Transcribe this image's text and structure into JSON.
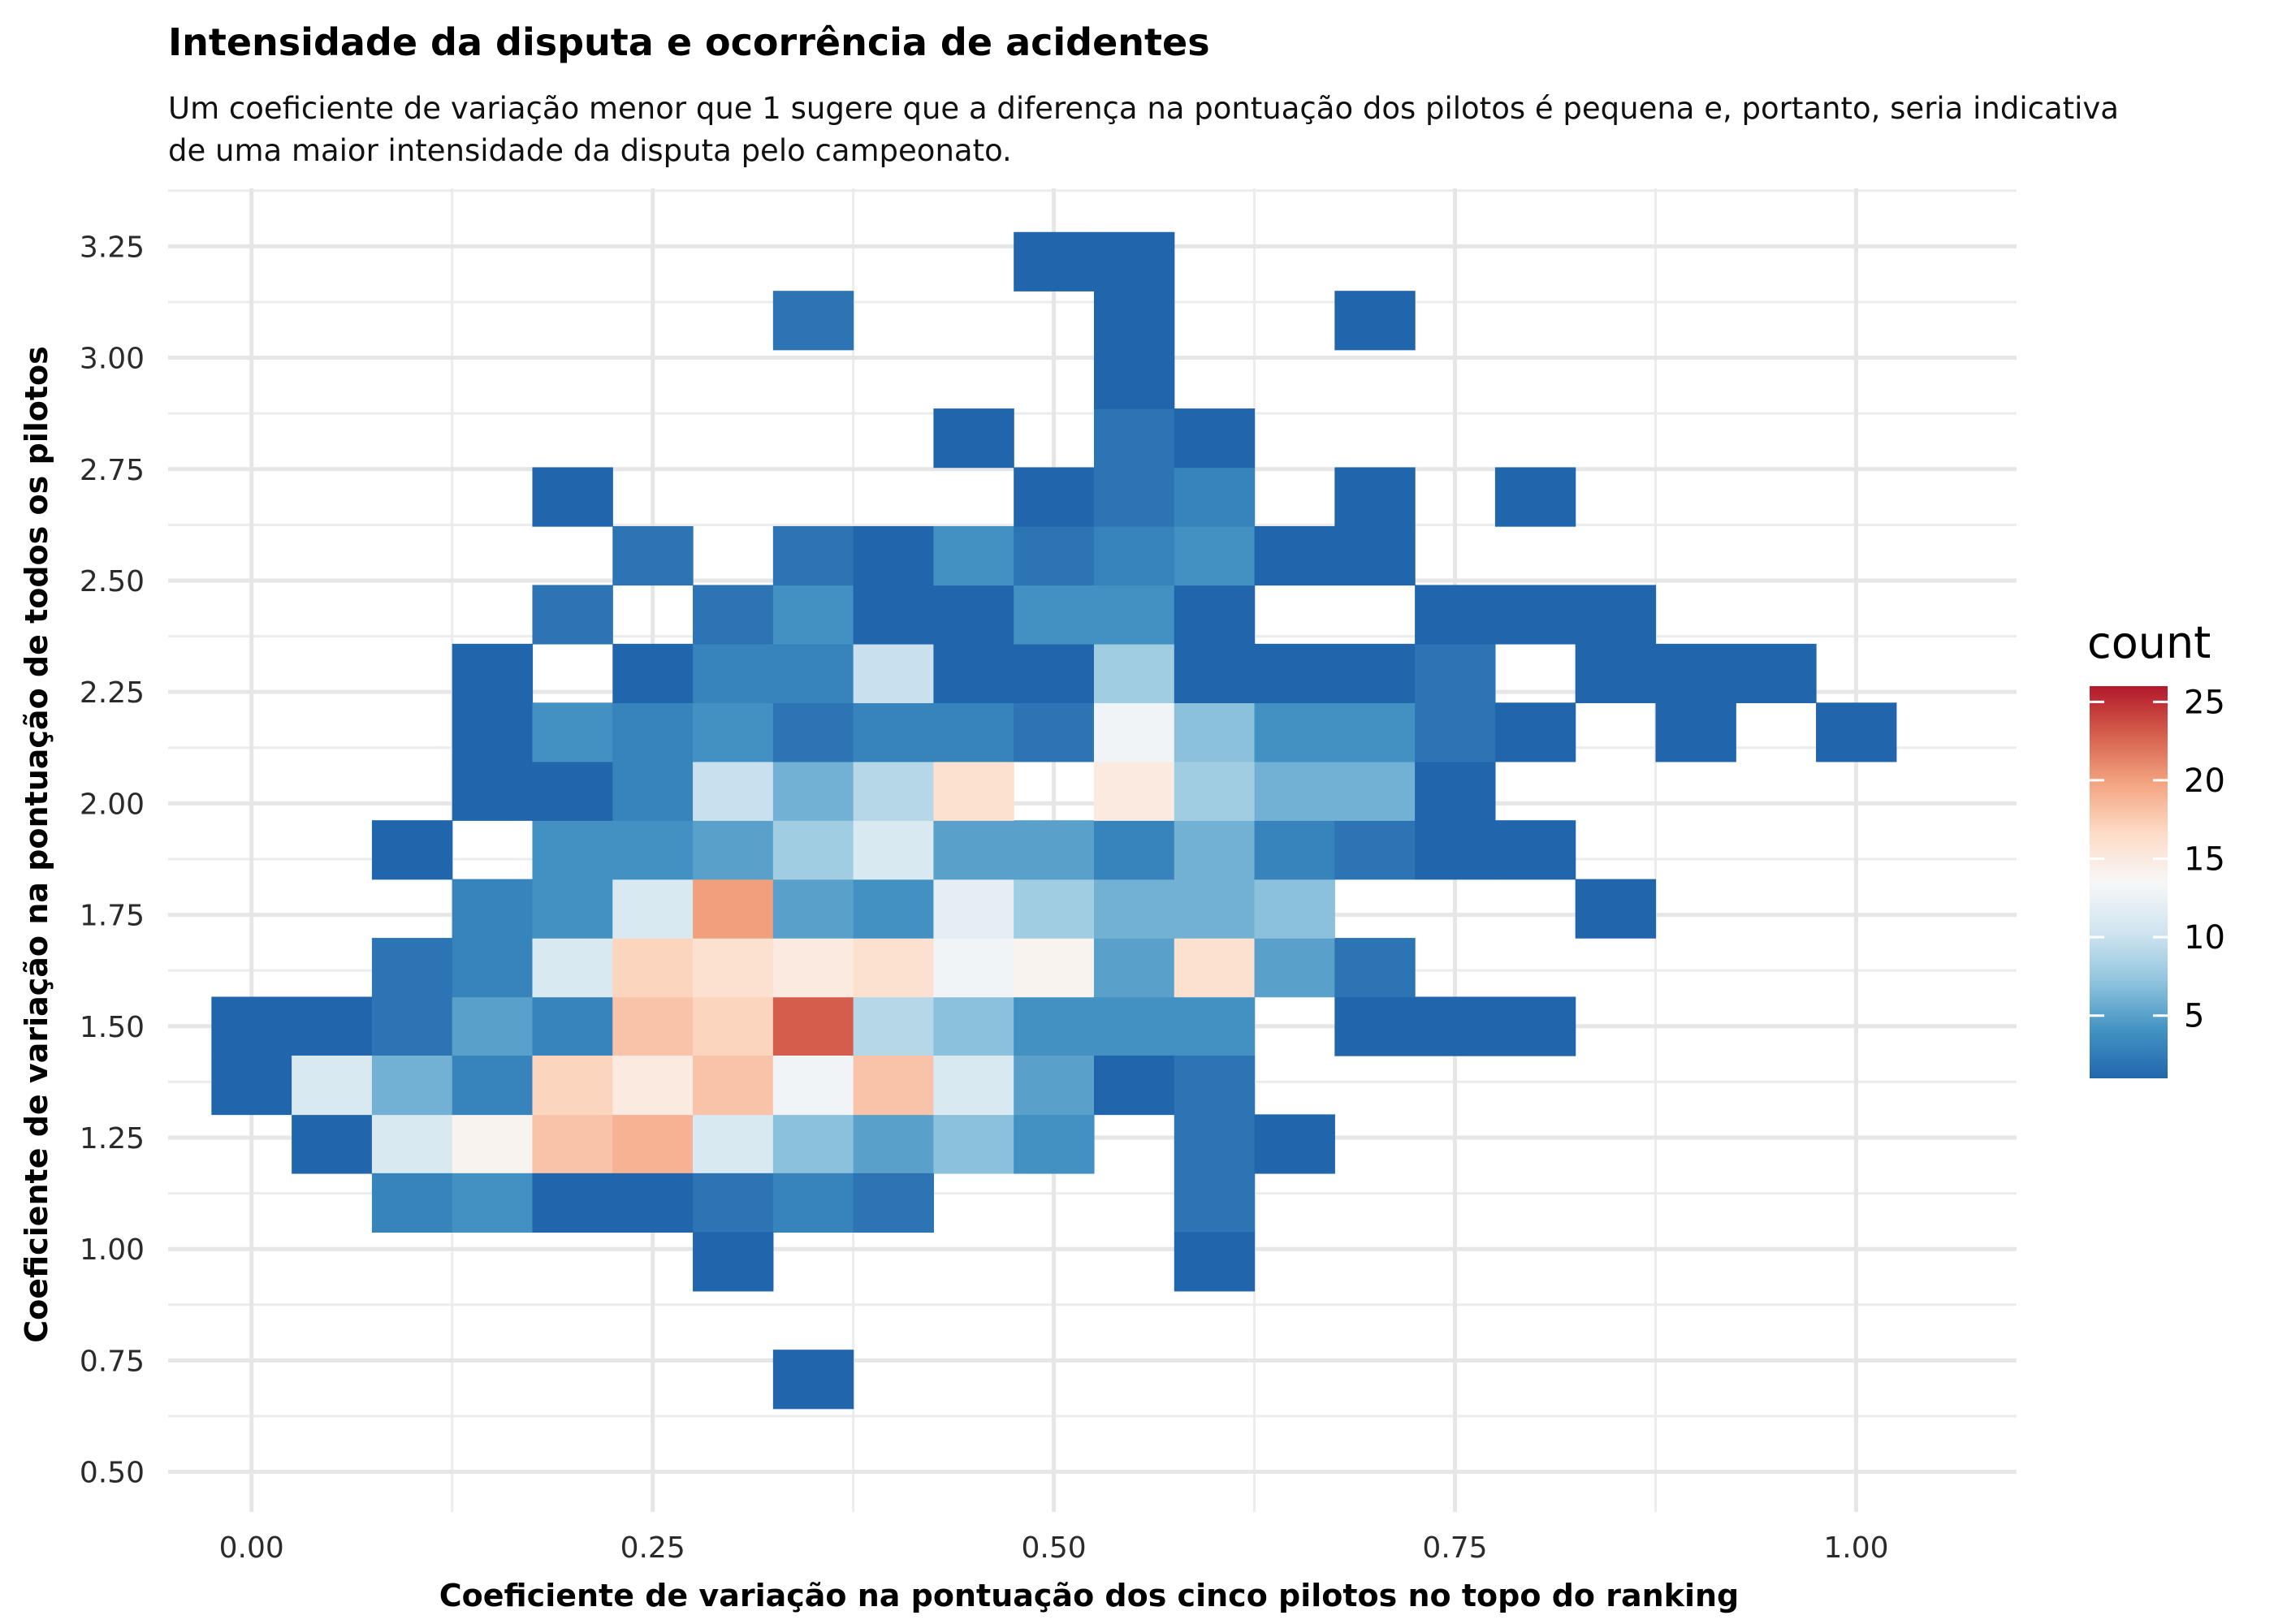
{
  "chart_data": {
    "type": "heatmap",
    "title": "Intensidade da disputa e ocorrência de acidentes",
    "subtitle": [
      "Um coeficiente de variação menor que 1 sugere que a diferença na pontuação dos pilotos é pequena e, portanto, seria indicativa",
      "de uma maior intensidade da disputa pelo campeonato."
    ],
    "xlabel": "Coeficiente de variação na pontuação dos cinco pilotos no topo do ranking",
    "ylabel": "Coeficiente de variação na pontuação de todos os pilotos",
    "x_ticks": [
      "0.00",
      "0.25",
      "0.50",
      "0.75",
      "1.00"
    ],
    "y_ticks": [
      "0.50",
      "0.75",
      "1.00",
      "1.25",
      "1.50",
      "1.75",
      "2.00",
      "2.25",
      "2.50",
      "2.75",
      "3.00",
      "3.25"
    ],
    "xlim": [
      -0.052,
      1.1
    ],
    "ylim": [
      0.41,
      3.38
    ],
    "grid": true,
    "bin_width_x": 0.05,
    "bin_height_y": 0.1322,
    "legend": {
      "title": "count",
      "ticks": [
        "5",
        "10",
        "15",
        "20",
        "25"
      ],
      "min": 1,
      "max": 26,
      "placement": "right",
      "colors": [
        "#2166ac",
        "#4393c3",
        "#92c5de",
        "#d1e5f0",
        "#f7f7f7",
        "#fddbc7",
        "#f4a582",
        "#d6604d",
        "#b2182b"
      ]
    },
    "cells": [
      {
        "x": 0.0,
        "y": 1.5,
        "count": 1
      },
      {
        "x": 0.05,
        "y": 1.5,
        "count": 1
      },
      {
        "x": 0.1,
        "y": 1.5,
        "count": 2
      },
      {
        "x": 0.15,
        "y": 1.5,
        "count": 5
      },
      {
        "x": 0.2,
        "y": 1.5,
        "count": 3
      },
      {
        "x": 0.25,
        "y": 1.5,
        "count": 18
      },
      {
        "x": 0.3,
        "y": 1.5,
        "count": 17
      },
      {
        "x": 0.35,
        "y": 1.5,
        "count": 23
      },
      {
        "x": 0.4,
        "y": 1.5,
        "count": 9
      },
      {
        "x": 0.45,
        "y": 1.5,
        "count": 7
      },
      {
        "x": 0.5,
        "y": 1.5,
        "count": 4
      },
      {
        "x": 0.55,
        "y": 1.5,
        "count": 4
      },
      {
        "x": 0.6,
        "y": 1.5,
        "count": 4
      },
      {
        "x": 0.7,
        "y": 1.5,
        "count": 1
      },
      {
        "x": 0.75,
        "y": 1.5,
        "count": 1
      },
      {
        "x": 0.8,
        "y": 1.5,
        "count": 1
      },
      {
        "x": 0.1,
        "y": 1.632,
        "count": 2
      },
      {
        "x": 0.15,
        "y": 1.632,
        "count": 3
      },
      {
        "x": 0.2,
        "y": 1.632,
        "count": 11
      },
      {
        "x": 0.25,
        "y": 1.632,
        "count": 17
      },
      {
        "x": 0.3,
        "y": 1.632,
        "count": 16
      },
      {
        "x": 0.35,
        "y": 1.632,
        "count": 15
      },
      {
        "x": 0.4,
        "y": 1.632,
        "count": 16
      },
      {
        "x": 0.45,
        "y": 1.632,
        "count": 13
      },
      {
        "x": 0.5,
        "y": 1.632,
        "count": 14
      },
      {
        "x": 0.55,
        "y": 1.632,
        "count": 5
      },
      {
        "x": 0.6,
        "y": 1.632,
        "count": 16
      },
      {
        "x": 0.65,
        "y": 1.632,
        "count": 5
      },
      {
        "x": 0.7,
        "y": 1.632,
        "count": 2
      },
      {
        "x": 0.15,
        "y": 1.764,
        "count": 3
      },
      {
        "x": 0.2,
        "y": 1.764,
        "count": 4
      },
      {
        "x": 0.25,
        "y": 1.764,
        "count": 11
      },
      {
        "x": 0.3,
        "y": 1.764,
        "count": 20
      },
      {
        "x": 0.35,
        "y": 1.764,
        "count": 5
      },
      {
        "x": 0.4,
        "y": 1.764,
        "count": 4
      },
      {
        "x": 0.45,
        "y": 1.764,
        "count": 12
      },
      {
        "x": 0.5,
        "y": 1.764,
        "count": 8
      },
      {
        "x": 0.55,
        "y": 1.764,
        "count": 6
      },
      {
        "x": 0.6,
        "y": 1.764,
        "count": 6
      },
      {
        "x": 0.65,
        "y": 1.764,
        "count": 7
      },
      {
        "x": 0.85,
        "y": 1.764,
        "count": 1
      },
      {
        "x": 0.1,
        "y": 1.896,
        "count": 1
      },
      {
        "x": 0.2,
        "y": 1.896,
        "count": 4
      },
      {
        "x": 0.25,
        "y": 1.896,
        "count": 4
      },
      {
        "x": 0.3,
        "y": 1.896,
        "count": 5
      },
      {
        "x": 0.35,
        "y": 1.896,
        "count": 8
      },
      {
        "x": 0.4,
        "y": 1.896,
        "count": 11
      },
      {
        "x": 0.45,
        "y": 1.896,
        "count": 5
      },
      {
        "x": 0.5,
        "y": 1.896,
        "count": 5
      },
      {
        "x": 0.55,
        "y": 1.896,
        "count": 3
      },
      {
        "x": 0.6,
        "y": 1.896,
        "count": 6
      },
      {
        "x": 0.65,
        "y": 1.896,
        "count": 3
      },
      {
        "x": 0.7,
        "y": 1.896,
        "count": 2
      },
      {
        "x": 0.75,
        "y": 1.896,
        "count": 1
      },
      {
        "x": 0.8,
        "y": 1.896,
        "count": 1
      },
      {
        "x": 0.15,
        "y": 2.028,
        "count": 1
      },
      {
        "x": 0.2,
        "y": 2.028,
        "count": 1
      },
      {
        "x": 0.25,
        "y": 2.028,
        "count": 3
      },
      {
        "x": 0.3,
        "y": 2.028,
        "count": 10
      },
      {
        "x": 0.35,
        "y": 2.028,
        "count": 6
      },
      {
        "x": 0.4,
        "y": 2.028,
        "count": 9
      },
      {
        "x": 0.45,
        "y": 2.028,
        "count": 16
      },
      {
        "x": 0.55,
        "y": 2.028,
        "count": 15
      },
      {
        "x": 0.6,
        "y": 2.028,
        "count": 8
      },
      {
        "x": 0.65,
        "y": 2.028,
        "count": 6
      },
      {
        "x": 0.7,
        "y": 2.028,
        "count": 6
      },
      {
        "x": 0.75,
        "y": 2.028,
        "count": 1
      },
      {
        "x": 0.15,
        "y": 2.16,
        "count": 1
      },
      {
        "x": 0.2,
        "y": 2.16,
        "count": 4
      },
      {
        "x": 0.25,
        "y": 2.16,
        "count": 3
      },
      {
        "x": 0.3,
        "y": 2.16,
        "count": 4
      },
      {
        "x": 0.35,
        "y": 2.16,
        "count": 2
      },
      {
        "x": 0.4,
        "y": 2.16,
        "count": 3
      },
      {
        "x": 0.45,
        "y": 2.16,
        "count": 3
      },
      {
        "x": 0.5,
        "y": 2.16,
        "count": 2
      },
      {
        "x": 0.55,
        "y": 2.16,
        "count": 13
      },
      {
        "x": 0.6,
        "y": 2.16,
        "count": 7
      },
      {
        "x": 0.65,
        "y": 2.16,
        "count": 4
      },
      {
        "x": 0.7,
        "y": 2.16,
        "count": 4
      },
      {
        "x": 0.75,
        "y": 2.16,
        "count": 2
      },
      {
        "x": 0.8,
        "y": 2.16,
        "count": 1
      },
      {
        "x": 0.9,
        "y": 2.16,
        "count": 1
      },
      {
        "x": 1.0,
        "y": 2.16,
        "count": 1
      },
      {
        "x": 0.15,
        "y": 2.292,
        "count": 1
      },
      {
        "x": 0.25,
        "y": 2.292,
        "count": 1
      },
      {
        "x": 0.3,
        "y": 2.292,
        "count": 3
      },
      {
        "x": 0.35,
        "y": 2.292,
        "count": 3
      },
      {
        "x": 0.4,
        "y": 2.292,
        "count": 10
      },
      {
        "x": 0.45,
        "y": 2.292,
        "count": 1
      },
      {
        "x": 0.5,
        "y": 2.292,
        "count": 1
      },
      {
        "x": 0.55,
        "y": 2.292,
        "count": 8
      },
      {
        "x": 0.6,
        "y": 2.292,
        "count": 1
      },
      {
        "x": 0.65,
        "y": 2.292,
        "count": 1
      },
      {
        "x": 0.7,
        "y": 2.292,
        "count": 1
      },
      {
        "x": 0.75,
        "y": 2.292,
        "count": 2
      },
      {
        "x": 0.85,
        "y": 2.292,
        "count": 1
      },
      {
        "x": 0.9,
        "y": 2.292,
        "count": 1
      },
      {
        "x": 0.95,
        "y": 2.292,
        "count": 1
      },
      {
        "x": 0.2,
        "y": 2.424,
        "count": 2
      },
      {
        "x": 0.3,
        "y": 2.424,
        "count": 2
      },
      {
        "x": 0.35,
        "y": 2.424,
        "count": 4
      },
      {
        "x": 0.4,
        "y": 2.424,
        "count": 1
      },
      {
        "x": 0.45,
        "y": 2.424,
        "count": 1
      },
      {
        "x": 0.5,
        "y": 2.424,
        "count": 4
      },
      {
        "x": 0.55,
        "y": 2.424,
        "count": 4
      },
      {
        "x": 0.6,
        "y": 2.424,
        "count": 1
      },
      {
        "x": 0.75,
        "y": 2.424,
        "count": 1
      },
      {
        "x": 0.8,
        "y": 2.424,
        "count": 1
      },
      {
        "x": 0.85,
        "y": 2.424,
        "count": 1
      },
      {
        "x": 0.25,
        "y": 2.556,
        "count": 2
      },
      {
        "x": 0.35,
        "y": 2.556,
        "count": 2
      },
      {
        "x": 0.4,
        "y": 2.556,
        "count": 1
      },
      {
        "x": 0.45,
        "y": 2.556,
        "count": 4
      },
      {
        "x": 0.5,
        "y": 2.556,
        "count": 2
      },
      {
        "x": 0.55,
        "y": 2.556,
        "count": 3
      },
      {
        "x": 0.6,
        "y": 2.556,
        "count": 4
      },
      {
        "x": 0.65,
        "y": 2.556,
        "count": 1
      },
      {
        "x": 0.7,
        "y": 2.556,
        "count": 1
      },
      {
        "x": 0.2,
        "y": 2.688,
        "count": 1
      },
      {
        "x": 0.5,
        "y": 2.688,
        "count": 1
      },
      {
        "x": 0.55,
        "y": 2.688,
        "count": 2
      },
      {
        "x": 0.6,
        "y": 2.688,
        "count": 3
      },
      {
        "x": 0.7,
        "y": 2.688,
        "count": 1
      },
      {
        "x": 0.8,
        "y": 2.688,
        "count": 1
      },
      {
        "x": 0.45,
        "y": 2.82,
        "count": 1
      },
      {
        "x": 0.55,
        "y": 2.82,
        "count": 2
      },
      {
        "x": 0.6,
        "y": 2.82,
        "count": 1
      },
      {
        "x": 0.55,
        "y": 2.952,
        "count": 1
      },
      {
        "x": 0.35,
        "y": 3.084,
        "count": 2
      },
      {
        "x": 0.55,
        "y": 3.084,
        "count": 1
      },
      {
        "x": 0.7,
        "y": 3.084,
        "count": 1
      },
      {
        "x": 0.5,
        "y": 3.216,
        "count": 1
      },
      {
        "x": 0.55,
        "y": 3.216,
        "count": 1
      },
      {
        "x": 0.05,
        "y": 1.236,
        "count": 1
      },
      {
        "x": 0.1,
        "y": 1.236,
        "count": 11
      },
      {
        "x": 0.15,
        "y": 1.236,
        "count": 14
      },
      {
        "x": 0.2,
        "y": 1.236,
        "count": 18
      },
      {
        "x": 0.25,
        "y": 1.236,
        "count": 19
      },
      {
        "x": 0.3,
        "y": 1.236,
        "count": 11
      },
      {
        "x": 0.35,
        "y": 1.236,
        "count": 7
      },
      {
        "x": 0.4,
        "y": 1.236,
        "count": 5
      },
      {
        "x": 0.45,
        "y": 1.236,
        "count": 7
      },
      {
        "x": 0.5,
        "y": 1.236,
        "count": 4
      },
      {
        "x": 0.6,
        "y": 1.236,
        "count": 2
      },
      {
        "x": 0.65,
        "y": 1.236,
        "count": 1
      },
      {
        "x": 0.0,
        "y": 1.368,
        "count": 1
      },
      {
        "x": 0.05,
        "y": 1.368,
        "count": 11
      },
      {
        "x": 0.1,
        "y": 1.368,
        "count": 6
      },
      {
        "x": 0.15,
        "y": 1.368,
        "count": 3
      },
      {
        "x": 0.2,
        "y": 1.368,
        "count": 17
      },
      {
        "x": 0.25,
        "y": 1.368,
        "count": 15
      },
      {
        "x": 0.3,
        "y": 1.368,
        "count": 18
      },
      {
        "x": 0.35,
        "y": 1.368,
        "count": 13
      },
      {
        "x": 0.4,
        "y": 1.368,
        "count": 18
      },
      {
        "x": 0.45,
        "y": 1.368,
        "count": 11
      },
      {
        "x": 0.5,
        "y": 1.368,
        "count": 5
      },
      {
        "x": 0.55,
        "y": 1.368,
        "count": 1
      },
      {
        "x": 0.6,
        "y": 1.368,
        "count": 2
      },
      {
        "x": 0.1,
        "y": 1.45,
        "count": 0
      },
      {
        "x": 0.1,
        "y": 1.104,
        "count": 3
      },
      {
        "x": 0.15,
        "y": 1.104,
        "count": 4
      },
      {
        "x": 0.2,
        "y": 1.104,
        "count": 1
      },
      {
        "x": 0.25,
        "y": 1.104,
        "count": 1
      },
      {
        "x": 0.3,
        "y": 1.104,
        "count": 2
      },
      {
        "x": 0.35,
        "y": 1.104,
        "count": 3
      },
      {
        "x": 0.4,
        "y": 1.104,
        "count": 2
      },
      {
        "x": 0.6,
        "y": 1.104,
        "count": 2
      },
      {
        "x": 0.3,
        "y": 0.972,
        "count": 1
      },
      {
        "x": 0.6,
        "y": 0.972,
        "count": 1
      },
      {
        "x": 0.35,
        "y": 0.708,
        "count": 1
      }
    ]
  }
}
